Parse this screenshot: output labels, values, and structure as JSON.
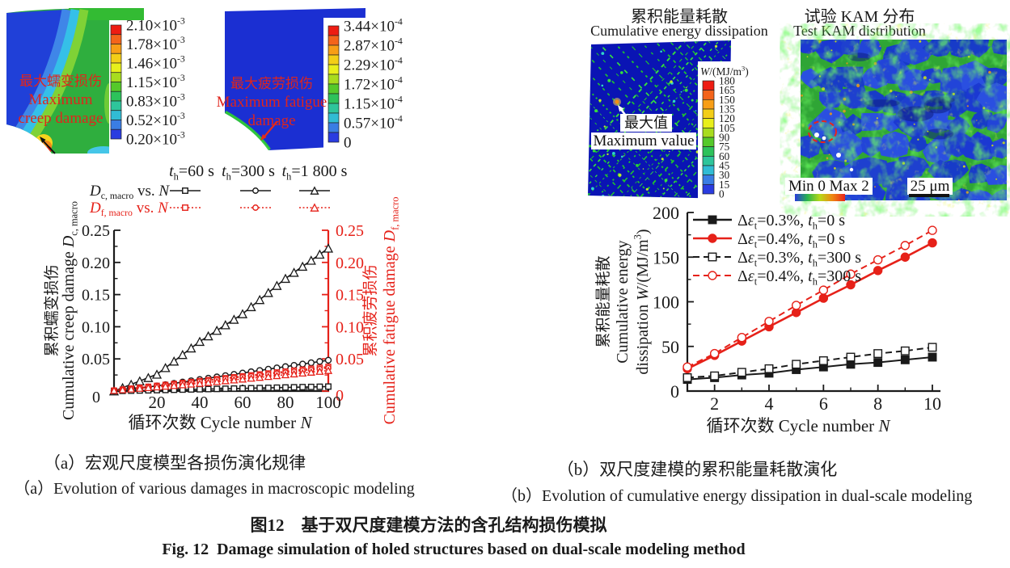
{
  "accent_red": "#e62119",
  "ink": "#1a1a1a",
  "palette12": [
    "#ee1c12",
    "#f4641a",
    "#f89e16",
    "#f3ce17",
    "#e8ef1b",
    "#a8dc1e",
    "#55c92a",
    "#2dc25b",
    "#2ec59b",
    "#31bcd4",
    "#3a7de4",
    "#2a3ce0"
  ],
  "panel_a": {
    "contour_creep": {
      "label_zh": "最大蠕变损伤",
      "label_en1": "Maximum",
      "label_en2": "creep damage",
      "scale_labels": [
        "2.10×10^{-3}",
        "1.78×10^{-3}",
        "1.46×10^{-3}",
        "1.15×10^{-3}",
        "0.83×10^{-3}",
        "0.52×10^{-3}",
        "0.20×10^{-3}"
      ]
    },
    "contour_fatigue": {
      "label_zh": "最大疲劳损伤",
      "label_en1": "Maximum fatigue",
      "label_en2": "damage",
      "scale_labels": [
        "3.44×10^{-4}",
        "2.87×10^{-4}",
        "2.29×10^{-4}",
        "1.72×10^{-4}",
        "1.15×10^{-4}",
        "0.57×10^{-4}",
        "0"
      ]
    },
    "legend": {
      "headers": [
        "*t*_{h}=60 s",
        "*t*_{h}=300 s",
        "*t*_{h}=1 800 s"
      ],
      "rows": [
        {
          "label": "*D*_{c, macro} vs. *N*",
          "color": "#1a1a1a",
          "dash": "solid",
          "markers": [
            "square",
            "circle",
            "triangle"
          ]
        },
        {
          "label": "*D*_{f, macro} vs. *N*",
          "color": "#e62119",
          "dash": "dot",
          "markers": [
            "square",
            "circle",
            "triangle"
          ]
        }
      ]
    },
    "caption_zh": "（a）宏观尺度模型各损伤演化规律",
    "caption_en": "（a）Evolution of various damages in macroscopic modeling"
  },
  "panel_b": {
    "title1_zh": "累积能量耗散",
    "title1_en": "Cumulative energy dissipation",
    "title2_zh": "试验 KAM 分布",
    "title2_en": "Test KAM distribution",
    "energy_image": {
      "max_label_zh": "最大值",
      "max_label_en": "Maximum value",
      "colorbar_title": "*W*/(MJ/m^{3})",
      "colorbar_labels": [
        "180",
        "165",
        "150",
        "135",
        "120",
        "105",
        "90",
        "75",
        "60",
        "45",
        "30",
        "15",
        "0"
      ]
    },
    "kam_image": {
      "minmax_label": "Min 0 Max 2",
      "scalebar_label": "25 μm"
    },
    "caption_zh": "（b）双尺度建模的累积能量耗散演化",
    "caption_en": "（b）Evolution of cumulative energy dissipation in dual-scale modeling"
  },
  "figure": {
    "caption_zh": "图12　基于双尺度建模方法的含孔结构损伤模拟",
    "caption_en": "Fig. 12  Damage simulation of holed structures based on dual-scale modeling method"
  },
  "chart_data": [
    {
      "type": "line",
      "xlabel": "循环次数 Cycle number *N*",
      "ylabel_left_zh": "累积蠕变损伤",
      "ylabel_left_en": "Cumulative creep damage *D*_{c, macro}",
      "ylabel_right_zh": "累积疲劳损伤",
      "ylabel_right_en": "Cumulative fatigue damage *D*_{f, macro}",
      "xlim": [
        0,
        100
      ],
      "ylim": [
        0,
        0.25
      ],
      "xticks": [
        20,
        40,
        60,
        80,
        100
      ],
      "yticks": [
        0,
        0.05,
        0.1,
        0.15,
        0.2,
        0.25
      ],
      "ytick_labels": [
        "0",
        "0.05",
        "0.10",
        "0.15",
        "0.20",
        "0.25"
      ],
      "marker_step": 4,
      "series": [
        {
          "name": "Dc,macro th=1 800 s",
          "axis": "left",
          "color": "#1a1a1a",
          "dash": "solid",
          "marker": "triangle",
          "fill": "open",
          "knots": [
            [
              0,
              0
            ],
            [
              20,
              0.026
            ],
            [
              40,
              0.077
            ],
            [
              60,
              0.12
            ],
            [
              80,
              0.175
            ],
            [
              100,
              0.222
            ]
          ]
        },
        {
          "name": "Dc,macro th=300 s",
          "axis": "left",
          "color": "#1a1a1a",
          "dash": "solid",
          "marker": "circle",
          "fill": "open",
          "knots": [
            [
              0,
              0
            ],
            [
              20,
              0.008
            ],
            [
              40,
              0.018
            ],
            [
              60,
              0.028
            ],
            [
              80,
              0.038
            ],
            [
              100,
              0.048
            ]
          ]
        },
        {
          "name": "Dc,macro th=60 s",
          "axis": "left",
          "color": "#1a1a1a",
          "dash": "solid",
          "marker": "square",
          "fill": "open",
          "knots": [
            [
              0,
              0
            ],
            [
              100,
              0.007
            ]
          ]
        },
        {
          "name": "Df,macro th=60 s",
          "axis": "right",
          "color": "#e62119",
          "dash": "dot",
          "marker": "square",
          "fill": "open",
          "knots": [
            [
              0,
              0.001
            ],
            [
              100,
              0.038
            ]
          ]
        },
        {
          "name": "Df,macro th=300 s",
          "axis": "right",
          "color": "#e62119",
          "dash": "dot",
          "marker": "circle",
          "fill": "open",
          "knots": [
            [
              0,
              0.001
            ],
            [
              100,
              0.036
            ]
          ]
        },
        {
          "name": "Df,macro th=1 800 s",
          "axis": "right",
          "color": "#e62119",
          "dash": "dot",
          "marker": "triangle",
          "fill": "open",
          "knots": [
            [
              0,
              0.001
            ],
            [
              40,
              0.012
            ],
            [
              100,
              0.032
            ]
          ]
        }
      ]
    },
    {
      "type": "line",
      "xlabel": "循环次数 Cycle number *N*",
      "ylabel_lines": [
        "累积能量耗散",
        "Cumulative energy",
        "dissipation *W*/(MJ/m^{3})"
      ],
      "xlim": [
        1,
        10
      ],
      "ylim": [
        0,
        200
      ],
      "xticks": [
        2,
        4,
        6,
        8,
        10
      ],
      "yticks": [
        0,
        50,
        100,
        150,
        200
      ],
      "x": [
        1,
        2,
        3,
        4,
        5,
        6,
        7,
        8,
        9,
        10
      ],
      "series": [
        {
          "label": "Δ*ε*_{t}=0.3%, *t*_{h}=0 s",
          "color": "#1a1a1a",
          "dash": "solid",
          "marker": "square",
          "fill": "solid",
          "values": [
            13,
            15,
            18,
            20,
            24,
            27,
            30,
            32,
            35,
            38
          ]
        },
        {
          "label": "Δ*ε*_{t}=0.4%, *t*_{h}=0 s",
          "color": "#e62119",
          "dash": "solid",
          "marker": "circle",
          "fill": "solid",
          "values": [
            25,
            40,
            56,
            72,
            88,
            104,
            119,
            135,
            150,
            166
          ]
        },
        {
          "label": "Δ*ε*_{t}=0.3%, *t*_{h}=300 s",
          "color": "#1a1a1a",
          "dash": "dash",
          "marker": "square",
          "fill": "open",
          "values": [
            15,
            17,
            21,
            25,
            30,
            34,
            38,
            42,
            45,
            49
          ]
        },
        {
          "label": "Δ*ε*_{t}=0.4%, *t*_{h}=300 s",
          "color": "#e62119",
          "dash": "dash",
          "marker": "circle",
          "fill": "open",
          "values": [
            27,
            42,
            60,
            78,
            96,
            113,
            131,
            147,
            163,
            180
          ]
        }
      ]
    }
  ]
}
